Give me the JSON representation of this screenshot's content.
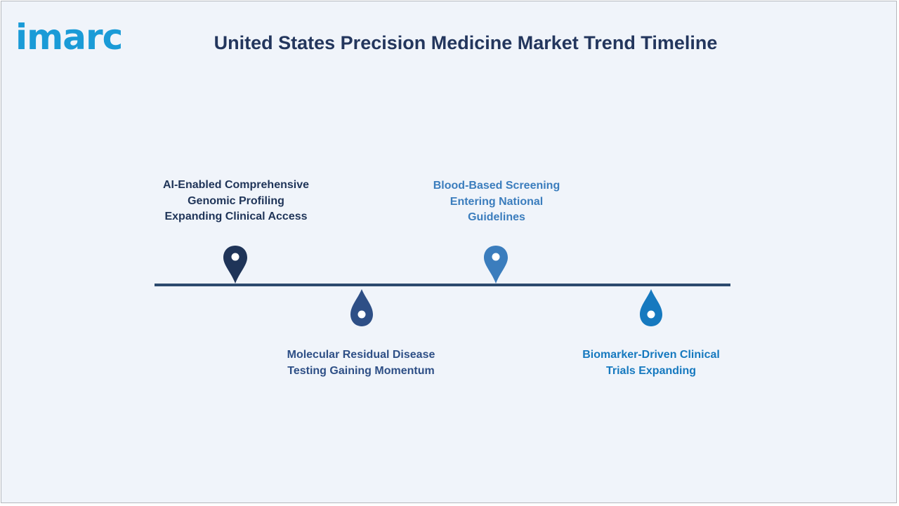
{
  "brand": {
    "logo_text": "imarc",
    "logo_color": "#1a9bd7"
  },
  "title": "United States Precision Medicine Market Trend Timeline",
  "timeline": {
    "line_color": "#2c4a6e",
    "milestones": [
      {
        "label": "AI-Enabled Comprehensive\nGenomic Profiling\nExpanding Clinical Access",
        "placement": "above",
        "color": "#1f3458",
        "icon": "map-pin-icon"
      },
      {
        "label": "Molecular Residual Disease\nTesting Gaining Momentum",
        "placement": "below",
        "color": "#2e4f86",
        "icon": "drop-icon"
      },
      {
        "label": "Blood-Based Screening\nEntering National\nGuidelines",
        "placement": "above",
        "color": "#3b7dbd",
        "icon": "map-pin-icon"
      },
      {
        "label": "Biomarker-Driven Clinical\nTrials Expanding",
        "placement": "below",
        "color": "#1679bf",
        "icon": "drop-icon"
      }
    ]
  }
}
